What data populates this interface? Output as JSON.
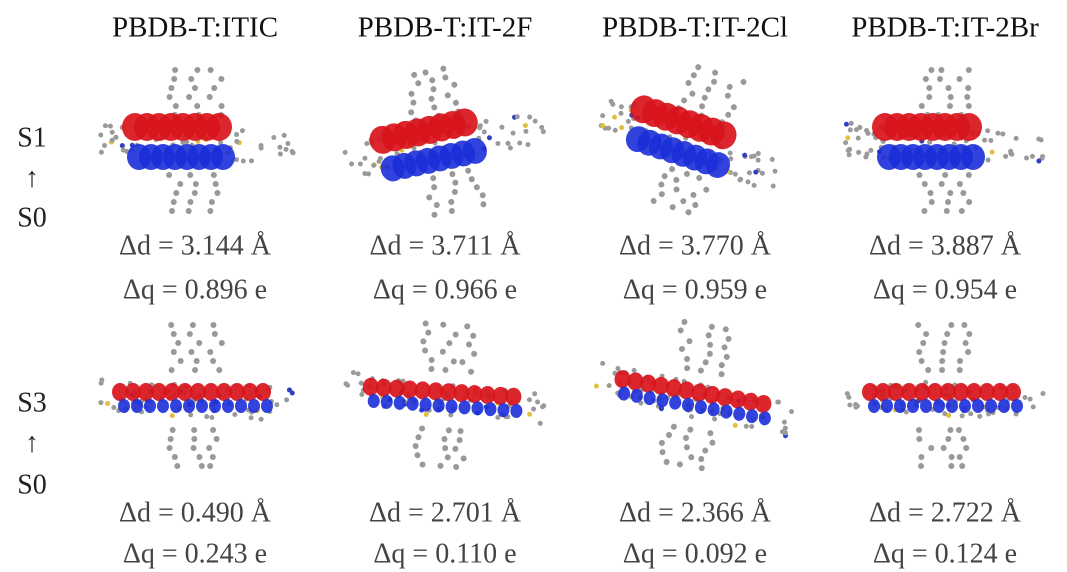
{
  "columns": [
    "PBDB-T:ITIC",
    "PBDB-T:IT-2F",
    "PBDB-T:IT-2Cl",
    "PBDB-T:IT-2Br"
  ],
  "rows": [
    {
      "label": [
        "S1",
        "↑",
        "S0"
      ],
      "cells": [
        {
          "delta_d": "Δd = 3.144 Å",
          "delta_q": "Δq = 0.896 e"
        },
        {
          "delta_d": "Δd = 3.711 Å",
          "delta_q": "Δq = 0.966 e"
        },
        {
          "delta_d": "Δd = 3.770 Å",
          "delta_q": "Δq = 0.959 e"
        },
        {
          "delta_d": "Δd = 3.887 Å",
          "delta_q": "Δq = 0.954 e"
        }
      ]
    },
    {
      "label": [
        "S3",
        "↑",
        "S0"
      ],
      "cells": [
        {
          "delta_d": "Δd = 0.490 Å",
          "delta_q": "Δq = 0.243 e"
        },
        {
          "delta_d": "Δd = 2.701 Å",
          "delta_q": "Δq = 0.110 e"
        },
        {
          "delta_d": "Δd = 2.366 Å",
          "delta_q": "Δq = 0.092 e"
        },
        {
          "delta_d": "Δd = 2.722 Å",
          "delta_q": "Δq = 0.124 e"
        }
      ]
    }
  ]
}
